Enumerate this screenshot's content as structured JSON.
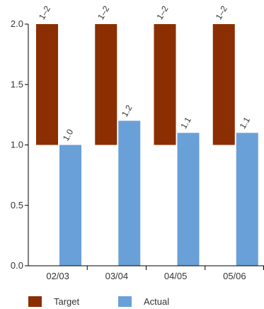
{
  "chart_data": {
    "type": "bar",
    "categories": [
      "02/03",
      "03/04",
      "04/05",
      "05/06"
    ],
    "ylim": [
      0,
      2.0
    ],
    "yticks": [
      "0.0",
      "0.5",
      "1.0",
      "1.5",
      "2.0"
    ],
    "ytick_values": [
      0,
      0.5,
      1.0,
      1.5,
      2.0
    ],
    "series": [
      {
        "name": "Target",
        "color": "#8b2e02",
        "ranges": [
          [
            1,
            2
          ],
          [
            1,
            2
          ],
          [
            1,
            2
          ],
          [
            1,
            2
          ]
        ],
        "labels": [
          "1–2",
          "1–2",
          "1–2",
          "1–2"
        ]
      },
      {
        "name": "Actual",
        "color": "#6aa0d8",
        "values": [
          1.0,
          1.2,
          1.1,
          1.1
        ],
        "labels": [
          "1.0",
          "1.2",
          "1.1",
          "1.1"
        ]
      }
    ],
    "legend_position": "bottom",
    "grid": false
  }
}
